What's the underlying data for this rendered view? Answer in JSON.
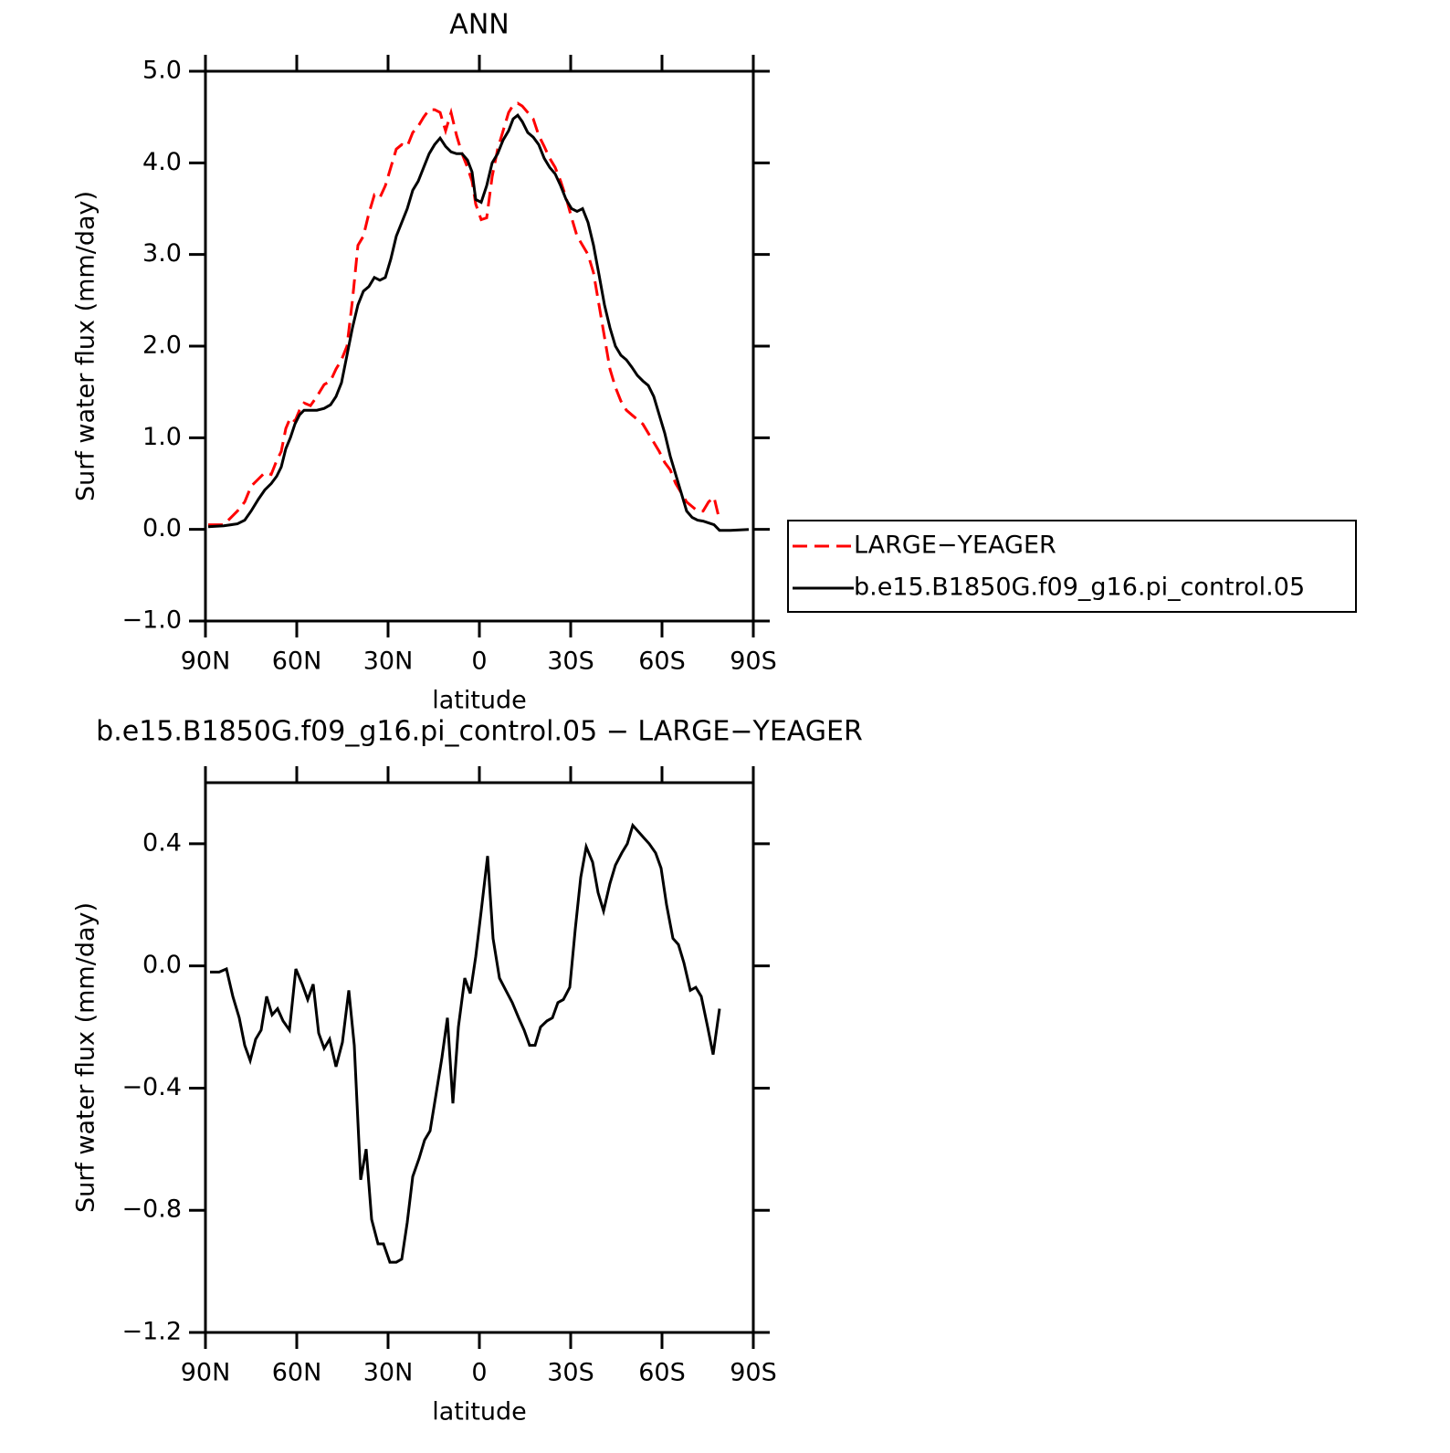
{
  "chart_data": [
    {
      "type": "line",
      "title": "ANN",
      "ylabel": "Surf water flux (mm/day)",
      "xlabel": "latitude",
      "xlim": [
        90,
        -90
      ],
      "xticks": [
        {
          "value": 90,
          "label": "90N"
        },
        {
          "value": 60,
          "label": "60N"
        },
        {
          "value": 30,
          "label": "30N"
        },
        0,
        {
          "value": -30,
          "label": "30S"
        },
        {
          "value": -60,
          "label": "60S"
        },
        {
          "value": -90,
          "label": "90S"
        }
      ],
      "ylim": [
        -1,
        5
      ],
      "yticks": [
        {
          "value": -1,
          "label": "−1.0"
        },
        {
          "value": 0,
          "label": "0.0"
        },
        {
          "value": 1,
          "label": "1.0"
        },
        {
          "value": 2,
          "label": "2.0"
        },
        {
          "value": 3,
          "label": "3.0"
        },
        {
          "value": 4,
          "label": "4.0"
        },
        {
          "value": 5,
          "label": "5.0"
        }
      ],
      "legend": "right",
      "x": [
        89.1,
        84,
        79.5,
        77.1,
        75,
        72.6,
        70.5,
        68.4,
        66.6,
        65.1,
        63.6,
        62.1,
        60.6,
        59.1,
        57.6,
        55.5,
        53.4,
        51,
        48.9,
        47.1,
        45.3,
        43.5,
        41.7,
        39.9,
        38.1,
        36.3,
        34.5,
        32.7,
        30.9,
        29.1,
        27.3,
        25.5,
        23.7,
        21.9,
        20.1,
        18.3,
        16.5,
        14.7,
        12.9,
        11.1,
        9.3,
        7.5,
        5.7,
        3.9,
        2.4,
        1.2,
        -0.6,
        -2.4,
        -4.2,
        -6,
        -7.8,
        -9.6,
        -11.1,
        -12.6,
        -14.1,
        -15.9,
        -17.7,
        -19.5,
        -21.3,
        -23.1,
        -24.9,
        -26.7,
        -28.5,
        -30.3,
        -32.1,
        -33.9,
        -35.7,
        -37.5,
        -39.3,
        -41.1,
        -42.9,
        -44.7,
        -46.5,
        -48.3,
        -50.1,
        -51.9,
        -53.7,
        -55.5,
        -57.3,
        -59.1,
        -60.9,
        -62.7,
        -64.5,
        -66.3,
        -68.1,
        -69.9,
        -71.7,
        -73.5,
        -75.3,
        -77.1,
        -78.9,
        -82.5,
        -88.5
      ],
      "series": [
        {
          "name": "LARGE−YEAGER",
          "color": "#ff0000",
          "dash": true,
          "values": [
            0.05,
            0.05,
            0.2,
            0.3,
            0.47,
            0.55,
            0.62,
            0.6,
            0.75,
            0.85,
            1.1,
            1.22,
            1.18,
            1.3,
            1.38,
            1.35,
            1.45,
            1.58,
            1.62,
            1.75,
            1.85,
            2.0,
            2.5,
            3.1,
            3.2,
            3.45,
            3.65,
            3.62,
            3.75,
            3.95,
            4.15,
            4.2,
            4.18,
            4.33,
            4.4,
            4.5,
            4.58,
            4.58,
            4.55,
            4.35,
            4.55,
            4.3,
            4.1,
            3.95,
            3.8,
            3.55,
            3.38,
            3.4,
            3.85,
            4.15,
            4.35,
            4.55,
            4.63,
            4.65,
            4.62,
            4.55,
            4.48,
            4.3,
            4.18,
            4.05,
            3.95,
            3.8,
            3.62,
            3.4,
            3.2,
            3.1,
            3.0,
            2.8,
            2.45,
            2.1,
            1.75,
            1.55,
            1.4,
            1.3,
            1.25,
            1.2,
            1.15,
            1.05,
            0.95,
            0.85,
            0.73,
            0.65,
            0.5,
            0.4,
            0.3,
            0.25,
            0.2,
            0.2,
            0.3,
            0.35,
            0.1,
            null,
            null
          ]
        },
        {
          "name": "b.e15.B1850G.f09_g16.pi_control.05",
          "color": "#000000",
          "dash": false,
          "values": [
            0.03,
            0.04,
            0.06,
            0.1,
            0.2,
            0.33,
            0.43,
            0.5,
            0.58,
            0.68,
            0.88,
            1.0,
            1.15,
            1.25,
            1.3,
            1.3,
            1.3,
            1.32,
            1.36,
            1.45,
            1.6,
            1.9,
            2.2,
            2.45,
            2.6,
            2.65,
            2.75,
            2.72,
            2.75,
            2.95,
            3.2,
            3.35,
            3.5,
            3.7,
            3.8,
            3.95,
            4.1,
            4.2,
            4.27,
            4.18,
            4.12,
            4.1,
            4.1,
            4.03,
            3.9,
            3.6,
            3.57,
            3.75,
            4.0,
            4.1,
            4.25,
            4.35,
            4.48,
            4.52,
            4.45,
            4.33,
            4.28,
            4.2,
            4.05,
            3.95,
            3.88,
            3.75,
            3.6,
            3.5,
            3.47,
            3.5,
            3.35,
            3.1,
            2.78,
            2.45,
            2.2,
            2.0,
            1.9,
            1.85,
            1.77,
            1.68,
            1.62,
            1.57,
            1.45,
            1.25,
            1.05,
            0.8,
            0.6,
            0.4,
            0.2,
            0.13,
            0.1,
            0.09,
            0.07,
            0.05,
            -0.01,
            -0.01,
            0.0
          ]
        }
      ]
    },
    {
      "type": "line",
      "title": "b.e15.B1850G.f09_g16.pi_control.05 − LARGE−YEAGER",
      "ylabel": "Surf water flux (mm/day)",
      "xlabel": "latitude",
      "xlim": [
        90,
        -90
      ],
      "xticks": [
        {
          "value": 90,
          "label": "90N"
        },
        {
          "value": 60,
          "label": "60N"
        },
        {
          "value": 30,
          "label": "30N"
        },
        0,
        {
          "value": -30,
          "label": "30S"
        },
        {
          "value": -60,
          "label": "60S"
        },
        {
          "value": -90,
          "label": "90S"
        }
      ],
      "ylim": [
        -1.2,
        0.6
      ],
      "yticks": [
        {
          "value": -1.2,
          "label": "−1.2"
        },
        {
          "value": -0.8,
          "label": "−0.8"
        },
        {
          "value": -0.4,
          "label": "−0.4"
        },
        {
          "value": 0,
          "label": "0.0"
        },
        0.4
      ],
      "color": "#000000",
      "x": [
        88.5,
        85.5,
        83.1,
        81,
        78.9,
        77.1,
        75.3,
        73.5,
        71.7,
        69.9,
        68.1,
        66.3,
        64.5,
        62.4,
        60.3,
        58.2,
        56.4,
        54.6,
        52.8,
        51,
        49.2,
        47.1,
        45,
        42.9,
        41.1,
        39,
        37.2,
        35.4,
        33.3,
        31.5,
        29.4,
        27.3,
        25.5,
        23.7,
        21.9,
        19.8,
        18,
        16.2,
        14.4,
        12.3,
        10.5,
        8.7,
        6.9,
        4.8,
        3,
        1.2,
        -0.6,
        -2.7,
        -4.5,
        -6.6,
        -8.7,
        -10.8,
        -12.9,
        -14.7,
        -16.5,
        -18.3,
        -20.1,
        -22.2,
        -24,
        -25.8,
        -27.6,
        -29.7,
        -31.5,
        -33.3,
        -35.1,
        -37.2,
        -39,
        -40.8,
        -42.9,
        -44.7,
        -46.8,
        -48.6,
        -50.4,
        -52.2,
        -54,
        -55.8,
        -57.9,
        -59.7,
        -61.5,
        -63.6,
        -65.4,
        -67.2,
        -69.3,
        -71.1,
        -72.9,
        -75,
        -76.8,
        -78.9
      ],
      "values": [
        -0.02,
        -0.02,
        -0.01,
        -0.1,
        -0.17,
        -0.26,
        -0.31,
        -0.24,
        -0.21,
        -0.1,
        -0.16,
        -0.14,
        -0.18,
        -0.21,
        -0.01,
        -0.06,
        -0.11,
        -0.06,
        -0.22,
        -0.27,
        -0.24,
        -0.33,
        -0.25,
        -0.08,
        -0.26,
        -0.7,
        -0.6,
        -0.83,
        -0.91,
        -0.91,
        -0.97,
        -0.97,
        -0.96,
        -0.84,
        -0.69,
        -0.63,
        -0.57,
        -0.54,
        -0.43,
        -0.3,
        -0.17,
        -0.45,
        -0.2,
        -0.04,
        -0.09,
        0.03,
        0.18,
        0.36,
        0.09,
        -0.04,
        -0.08,
        -0.12,
        -0.17,
        -0.21,
        -0.26,
        -0.26,
        -0.2,
        -0.18,
        -0.17,
        -0.12,
        -0.11,
        -0.07,
        0.12,
        0.29,
        0.39,
        0.34,
        0.24,
        0.18,
        0.27,
        0.33,
        0.37,
        0.4,
        0.46,
        0.44,
        0.42,
        0.4,
        0.37,
        0.32,
        0.2,
        0.09,
        0.07,
        0.01,
        -0.08,
        -0.07,
        -0.1,
        -0.2,
        -0.29,
        -0.14
      ]
    }
  ]
}
